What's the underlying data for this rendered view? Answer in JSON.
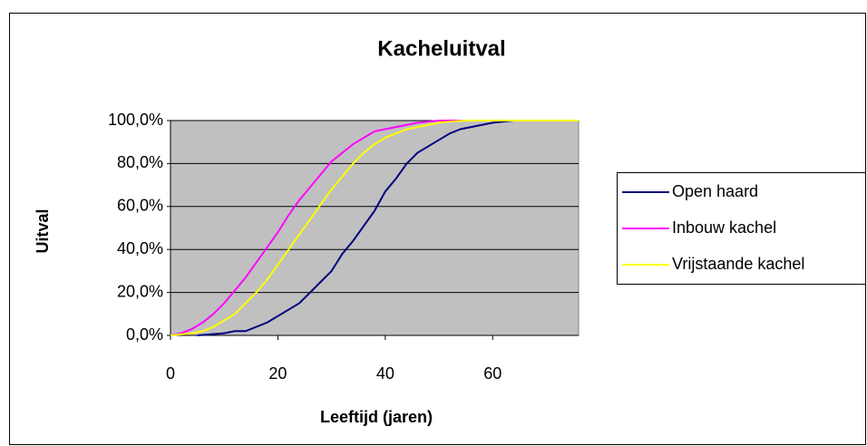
{
  "chart_data": {
    "type": "line",
    "title": "Kacheluitval",
    "x_label": "Leeftijd (jaren)",
    "y_label": "Uitval",
    "xlim": [
      0,
      76
    ],
    "xticks": [
      0,
      20,
      40,
      60
    ],
    "ylim": [
      0,
      100
    ],
    "yticks": [
      {
        "value": 0,
        "label": "0,0%"
      },
      {
        "value": 20,
        "label": "20,0%"
      },
      {
        "value": 40,
        "label": "40,0%"
      },
      {
        "value": 60,
        "label": "60,0%"
      },
      {
        "value": 80,
        "label": "80,0%"
      },
      {
        "value": 100,
        "label": "100,0%"
      }
    ],
    "grid": true,
    "legend": "right",
    "plot_background": "#c0c0c0",
    "series": [
      {
        "name": "Open haard",
        "color": "#000080",
        "x": [
          5,
          10,
          12,
          14,
          18,
          22,
          24,
          28,
          30,
          32,
          34,
          36,
          38,
          40,
          42,
          44,
          46,
          48,
          50,
          52,
          54,
          56,
          58,
          60,
          62,
          64
        ],
        "values": [
          0,
          1,
          2,
          2,
          6,
          12,
          15,
          25,
          30,
          38,
          44,
          51,
          58,
          67,
          73,
          80,
          85,
          88,
          91,
          94,
          96,
          97,
          98,
          99,
          99.5,
          100
        ]
      },
      {
        "name": "Inbouw kachel",
        "color": "#ff00ff",
        "x": [
          0,
          2,
          4,
          6,
          8,
          10,
          12,
          14,
          16,
          18,
          20,
          22,
          24,
          26,
          28,
          30,
          32,
          34,
          36,
          38,
          40,
          42,
          44,
          46,
          48,
          50,
          76
        ],
        "values": [
          0,
          1,
          3,
          6,
          10,
          15,
          21,
          27,
          34,
          41,
          48,
          56,
          63,
          69,
          75,
          81,
          85,
          89,
          92,
          95,
          96,
          97,
          98,
          99,
          99.5,
          100,
          100
        ]
      },
      {
        "name": "Vrijstaande kachel",
        "color": "#ffff00",
        "x": [
          0,
          4,
          6,
          8,
          10,
          12,
          14,
          16,
          18,
          20,
          22,
          24,
          26,
          28,
          30,
          32,
          34,
          36,
          38,
          40,
          42,
          44,
          46,
          48,
          50,
          52,
          55,
          76
        ],
        "values": [
          0,
          1,
          2,
          4,
          7,
          10,
          15,
          20,
          26,
          33,
          40,
          47,
          54,
          61,
          68,
          74,
          80,
          85,
          89,
          92,
          94,
          96,
          97,
          98,
          99,
          99.5,
          100,
          100
        ]
      }
    ]
  }
}
